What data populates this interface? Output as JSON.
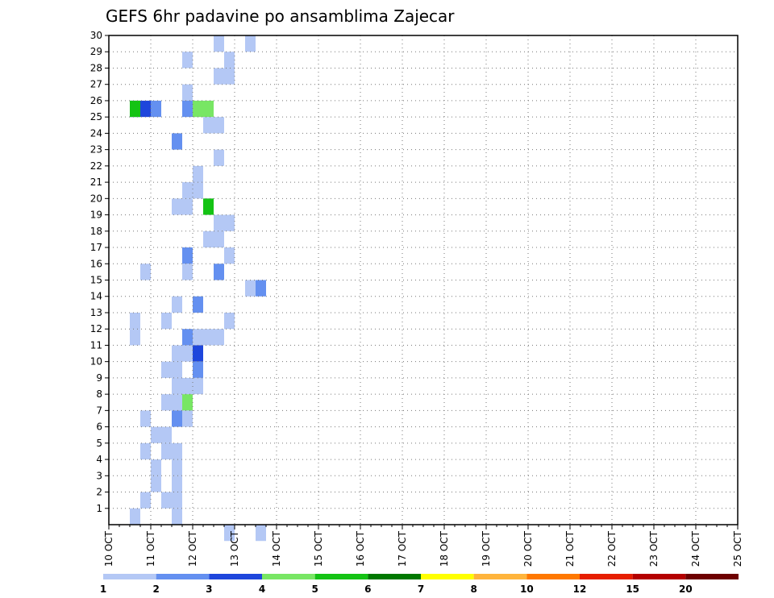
{
  "chart_data": {
    "type": "heatmap",
    "title": "GEFS 6hr padavine po ansamblima Zajecar",
    "xlabel": "",
    "ylabel": "",
    "x_ticks": [
      "10 OCT",
      "11 OCT",
      "12 OCT",
      "13 OCT",
      "14 OCT",
      "15 OCT",
      "16 OCT",
      "17 OCT",
      "18 OCT",
      "19 OCT",
      "20 OCT",
      "21 OCT",
      "22 OCT",
      "23 OCT",
      "24 OCT",
      "25 OCT"
    ],
    "y_ticks": [
      1,
      2,
      3,
      4,
      5,
      6,
      7,
      8,
      9,
      10,
      11,
      12,
      13,
      14,
      15,
      16,
      17,
      18,
      19,
      20,
      21,
      22,
      23,
      24,
      25,
      26,
      27,
      28,
      29,
      30
    ],
    "x_range": [
      "10 OCT",
      "25 OCT"
    ],
    "y_range": [
      0,
      30
    ],
    "time_step_hours": 6,
    "grid": true,
    "legend": {
      "placement": "bottom",
      "levels": [
        1,
        2,
        3,
        4,
        5,
        6,
        7,
        8,
        10,
        12,
        15,
        20
      ],
      "colors": [
        "#b4c8f5",
        "#6490f0",
        "#1e46dc",
        "#78e664",
        "#14c314",
        "#007800",
        "#ffff00",
        "#ffb43c",
        "#ff7800",
        "#e61e00",
        "#b40000",
        "#6e0000"
      ]
    },
    "cells": [
      [
        0,
        0,
        11
      ],
      [
        0,
        0,
        14
      ],
      [
        30,
        0,
        10
      ],
      [
        30,
        0,
        13
      ],
      [
        29,
        0,
        11
      ],
      [
        29,
        0,
        7
      ],
      [
        28,
        0,
        10
      ],
      [
        28,
        0,
        11
      ],
      [
        27,
        0,
        7
      ],
      [
        26,
        0,
        9
      ],
      [
        26,
        0,
        8
      ],
      [
        26,
        1,
        4
      ],
      [
        26,
        1,
        7
      ],
      [
        26,
        2,
        2
      ],
      [
        26,
        2,
        3
      ],
      [
        26,
        4,
        2
      ],
      [
        26,
        3,
        8
      ],
      [
        26,
        3,
        9
      ],
      [
        25,
        0,
        9
      ],
      [
        25,
        0,
        10
      ],
      [
        24,
        1,
        6
      ],
      [
        23,
        0,
        10
      ],
      [
        22,
        0,
        8
      ],
      [
        21,
        0,
        7
      ],
      [
        21,
        0,
        8
      ],
      [
        20,
        0,
        6
      ],
      [
        20,
        0,
        7
      ],
      [
        20,
        0,
        9
      ],
      [
        20,
        4,
        9
      ],
      [
        19,
        0,
        10
      ],
      [
        19,
        0,
        11
      ],
      [
        18,
        0,
        9
      ],
      [
        18,
        0,
        10
      ],
      [
        17,
        1,
        7
      ],
      [
        17,
        0,
        11
      ],
      [
        16,
        0,
        3
      ],
      [
        16,
        0,
        7
      ],
      [
        16,
        1,
        10
      ],
      [
        15,
        0,
        13
      ],
      [
        15,
        1,
        14
      ],
      [
        14,
        1,
        8
      ],
      [
        14,
        0,
        6
      ],
      [
        13,
        0,
        2
      ],
      [
        13,
        0,
        5
      ],
      [
        13,
        0,
        11
      ],
      [
        12,
        0,
        2
      ],
      [
        12,
        0,
        8
      ],
      [
        12,
        0,
        9
      ],
      [
        12,
        0,
        10
      ],
      [
        12,
        1,
        7
      ],
      [
        11,
        0,
        6
      ],
      [
        11,
        0,
        7
      ],
      [
        11,
        2,
        8
      ],
      [
        10,
        1,
        8
      ],
      [
        10,
        0,
        6
      ],
      [
        10,
        0,
        5
      ],
      [
        9,
        0,
        6
      ],
      [
        9,
        0,
        7
      ],
      [
        9,
        0,
        8
      ],
      [
        8,
        0,
        5
      ],
      [
        8,
        0,
        6
      ],
      [
        8,
        3,
        7
      ],
      [
        7,
        0,
        3
      ],
      [
        7,
        1,
        6
      ],
      [
        7,
        0,
        7
      ],
      [
        6,
        0,
        4
      ],
      [
        6,
        0,
        5
      ],
      [
        5,
        0,
        3
      ],
      [
        5,
        0,
        5
      ],
      [
        5,
        0,
        6
      ],
      [
        4,
        0,
        4
      ],
      [
        4,
        0,
        6
      ],
      [
        3,
        0,
        4
      ],
      [
        3,
        0,
        6
      ],
      [
        2,
        0,
        3
      ],
      [
        2,
        0,
        5
      ],
      [
        2,
        0,
        6
      ],
      [
        1,
        0,
        2
      ],
      [
        1,
        0,
        6
      ]
    ]
  }
}
